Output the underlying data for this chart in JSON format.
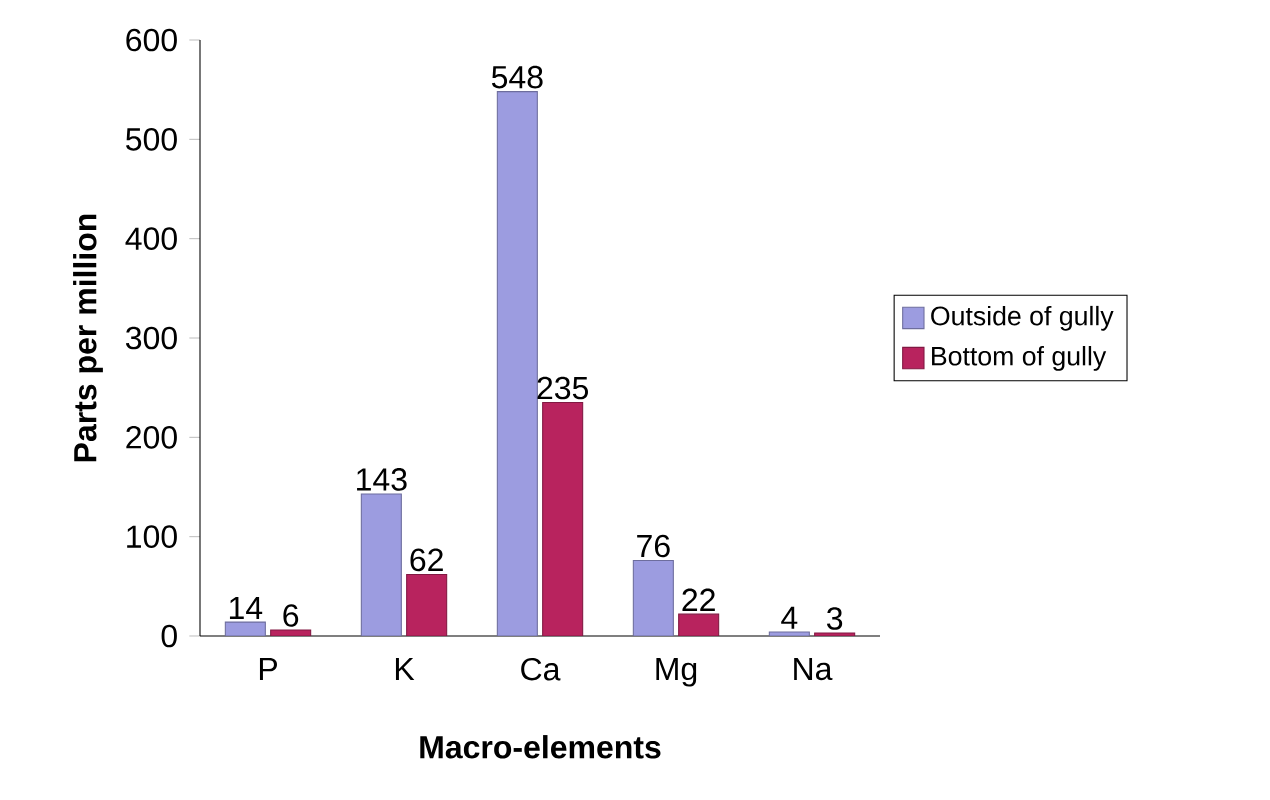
{
  "chart_data": {
    "type": "bar",
    "xlabel": "Macro-elements",
    "ylabel": "Parts per million",
    "categories": [
      "P",
      "K",
      "Ca",
      "Mg",
      "Na"
    ],
    "series": [
      {
        "name": "Outside of gully",
        "color": "#9c9ce0",
        "values": [
          14,
          143,
          548,
          76,
          4
        ]
      },
      {
        "name": "Bottom of gully",
        "color": "#b8235e",
        "values": [
          6,
          62,
          235,
          22,
          3
        ]
      }
    ],
    "ylim": [
      0,
      600
    ],
    "yticks": [
      0,
      100,
      200,
      300,
      400,
      500,
      600
    ],
    "data_labels": true,
    "grid": false,
    "legend": "right"
  }
}
